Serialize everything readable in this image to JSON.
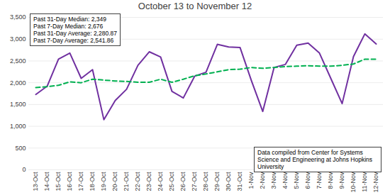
{
  "chart_data": {
    "type": "line",
    "title": "October 13 to November 12",
    "categories": [
      "13-Oct",
      "14-Oct",
      "15-Oct",
      "16-Oct",
      "17-Oct",
      "18-Oct",
      "19-Oct",
      "20-Oct",
      "21-Oct",
      "22-Oct",
      "23-Oct",
      "24-Oct",
      "25-Oct",
      "26-Oct",
      "27-Oct",
      "28-Oct",
      "29-Oct",
      "30-Oct",
      "31-Oct",
      "1-Nov",
      "2-Nov",
      "3-Nov",
      "4-Nov",
      "5-Nov",
      "6-Nov",
      "7-Nov",
      "8-Nov",
      "9-Nov",
      "10-Nov",
      "11-Nov",
      "12-Nov"
    ],
    "series": [
      {
        "color": "#7030a0",
        "line_style": "solid",
        "values": [
          1730,
          1920,
          2540,
          2680,
          2100,
          2300,
          1150,
          1590,
          1850,
          2400,
          2710,
          2590,
          1800,
          1650,
          2150,
          2240,
          2880,
          2820,
          2810,
          2050,
          1340,
          2350,
          2420,
          2860,
          2910,
          2680,
          2100,
          1520,
          2600,
          3120,
          2890
        ]
      },
      {
        "color": "#00b050",
        "line_style": "dashed",
        "values": [
          1890,
          1910,
          1940,
          2020,
          2000,
          2080,
          2060,
          2040,
          2030,
          2010,
          2010,
          2080,
          2010,
          2080,
          2160,
          2200,
          2250,
          2300,
          2310,
          2350,
          2330,
          2350,
          2370,
          2380,
          2390,
          2380,
          2380,
          2400,
          2430,
          2540,
          2540
        ]
      }
    ],
    "ylim": [
      0,
      3500
    ],
    "yticks": [
      0,
      500,
      1000,
      1500,
      2000,
      2500,
      3000,
      3500
    ],
    "grid": true,
    "annotations": {
      "stats": [
        "Past 31-Day Median: 2,349",
        "Past 7-Day Median: 2,676",
        "Past 31-Day Average: 2,280.87",
        "Past 7-Day Average: 2,541.86"
      ],
      "source": "Data compiled from Center for Systems Science and Engineering at Johns Hopkins University"
    }
  }
}
